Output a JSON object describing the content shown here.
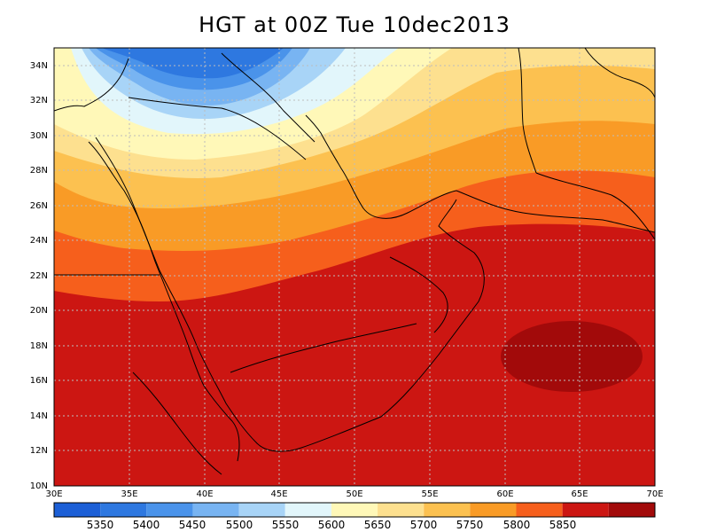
{
  "title": "HGT at 00Z Tue 10dec2013",
  "map": {
    "lat_ticks": [
      "34N",
      "32N",
      "30N",
      "28N",
      "26N",
      "24N",
      "22N",
      "20N",
      "18N",
      "16N",
      "14N",
      "12N",
      "10N"
    ],
    "lon_ticks": [
      "30E",
      "35E",
      "40E",
      "45E",
      "50E",
      "55E",
      "60E",
      "65E",
      "70E"
    ]
  },
  "colorbar": {
    "labels": [
      "5350",
      "5400",
      "5450",
      "5500",
      "5550",
      "5600",
      "5650",
      "5700",
      "5750",
      "5800",
      "5850"
    ],
    "colors": [
      "#1c5fd6",
      "#2e78e0",
      "#4a93ea",
      "#78b4f2",
      "#a8d4f7",
      "#e2f6fb",
      "#fff8b8",
      "#fde08f",
      "#fcc150",
      "#f99b26",
      "#f65f1c",
      "#cc1612",
      "#a20a0a"
    ]
  }
}
